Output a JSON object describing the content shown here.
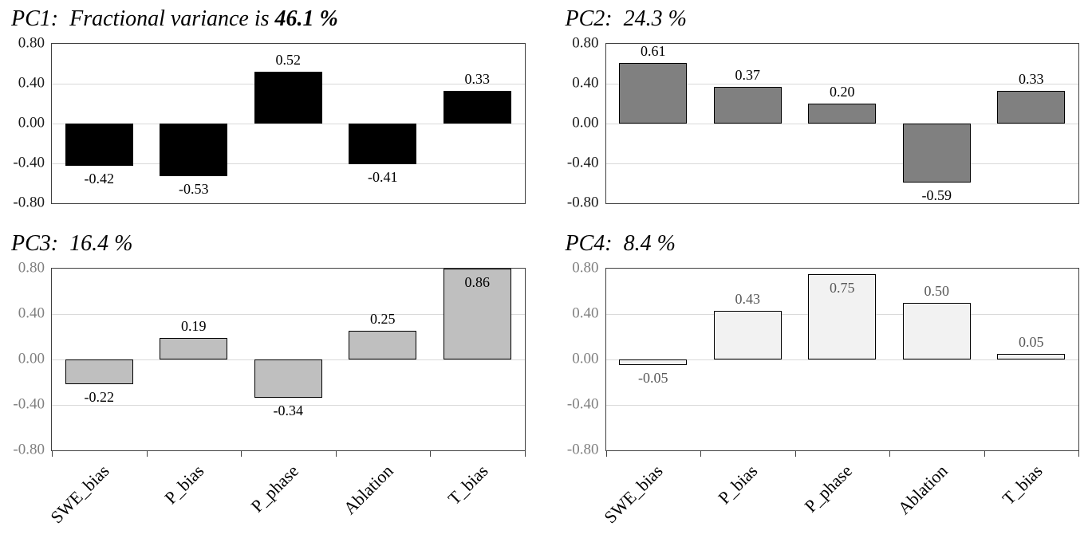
{
  "page": {
    "background": "#ffffff"
  },
  "chart_data": [
    {
      "type": "bar",
      "title_prefix": "PC1:  ",
      "title_rest": "Fractional variance is ",
      "title_value": "46.1 %",
      "title_value_bold": true,
      "categories": [
        "SWE_bias",
        "P_bias",
        "P_phase",
        "Ablation",
        "T_bias"
      ],
      "values": [
        -0.42,
        -0.53,
        0.52,
        -0.41,
        0.33
      ],
      "value_labels": [
        "-0.42",
        "-0.53",
        "0.52",
        "-0.41",
        "0.33"
      ],
      "ylim": [
        -0.8,
        0.8
      ],
      "yticks": [
        "0.80",
        "0.40",
        "0.00",
        "-0.40",
        "-0.80"
      ],
      "grid": true,
      "legend": false,
      "bar_fill": "#000000",
      "bar_stroke": "#000000",
      "tick_color": "#1a1a1a",
      "value_label_color": "#000000",
      "show_x_labels": false
    },
    {
      "type": "bar",
      "title_prefix": "PC2:  ",
      "title_rest": "",
      "title_value": "24.3 %",
      "title_value_bold": false,
      "categories": [
        "SWE_bias",
        "P_bias",
        "P_phase",
        "Ablation",
        "T_bias"
      ],
      "values": [
        0.61,
        0.37,
        0.2,
        -0.59,
        0.33
      ],
      "value_labels": [
        "0.61",
        "0.37",
        "0.20",
        "-0.59",
        "0.33"
      ],
      "ylim": [
        -0.8,
        0.8
      ],
      "yticks": [
        "0.80",
        "0.40",
        "0.00",
        "-0.40",
        "-0.80"
      ],
      "grid": true,
      "legend": false,
      "bar_fill": "#808080",
      "bar_stroke": "#000000",
      "tick_color": "#1a1a1a",
      "value_label_color": "#000000",
      "show_x_labels": false
    },
    {
      "type": "bar",
      "title_prefix": "PC3:  ",
      "title_rest": "",
      "title_value": "16.4 %",
      "title_value_bold": false,
      "categories": [
        "SWE_bias",
        "P_bias",
        "P_phase",
        "Ablation",
        "T_bias"
      ],
      "values": [
        -0.22,
        0.19,
        -0.34,
        0.25,
        0.86
      ],
      "value_labels": [
        "-0.22",
        "0.19",
        "-0.34",
        "0.25",
        "0.86"
      ],
      "ylim": [
        -0.8,
        0.8
      ],
      "yticks": [
        "0.80",
        "0.40",
        "0.00",
        "-0.40",
        "-0.80"
      ],
      "grid": true,
      "legend": false,
      "bar_fill": "#bfbfbf",
      "bar_stroke": "#000000",
      "tick_color": "#808080",
      "value_label_color": "#000000",
      "show_x_labels": true
    },
    {
      "type": "bar",
      "title_prefix": "PC4:  ",
      "title_rest": "",
      "title_value": "8.4 %",
      "title_value_bold": false,
      "categories": [
        "SWE_bias",
        "P_bias",
        "P_phase",
        "Ablation",
        "T_bias"
      ],
      "values": [
        -0.05,
        0.43,
        0.75,
        0.5,
        0.05
      ],
      "value_labels": [
        "-0.05",
        "0.43",
        "0.75",
        "0.50",
        "0.05"
      ],
      "ylim": [
        -0.8,
        0.8
      ],
      "yticks": [
        "0.80",
        "0.40",
        "0.00",
        "-0.40",
        "-0.80"
      ],
      "grid": true,
      "legend": false,
      "bar_fill": "#f2f2f2",
      "bar_stroke": "#000000",
      "tick_color": "#808080",
      "value_label_color": "#595959",
      "show_x_labels": true
    }
  ]
}
